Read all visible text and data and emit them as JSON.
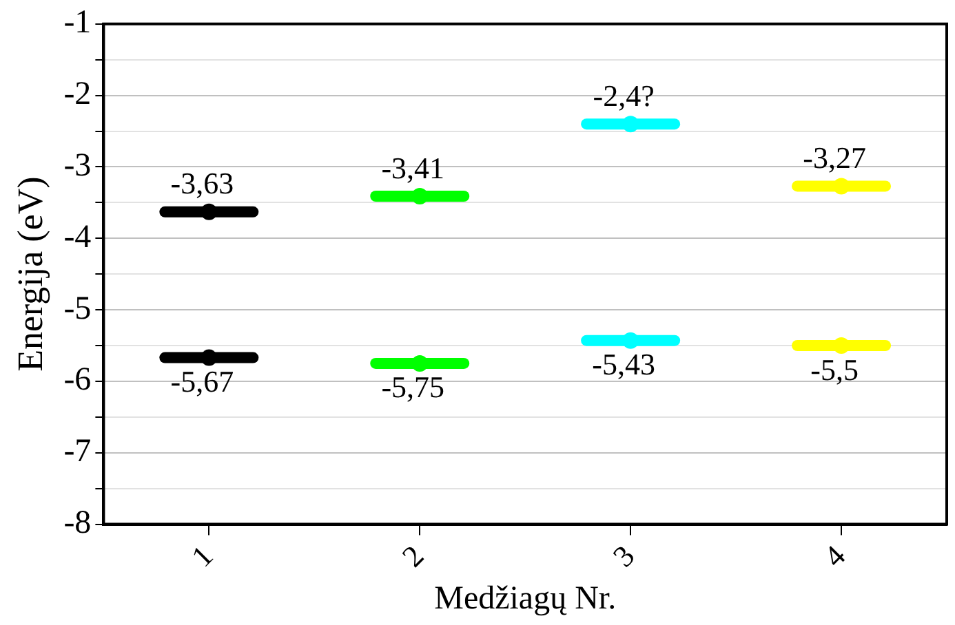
{
  "chart_data": {
    "type": "scatter",
    "xlabel": "Medžiagų Nr.",
    "ylabel": "Energija (eV)",
    "categories": [
      "1",
      "2",
      "3",
      "4"
    ],
    "series": [
      {
        "values": [
          -3.63,
          -3.41,
          -2.4,
          -3.27
        ],
        "colors": [
          "#000000",
          "#00ff00",
          "#00ffff",
          "#ffff00"
        ],
        "value_labels": [
          "-3,63",
          "-3,41",
          "-2,4?",
          "-3,27"
        ]
      },
      {
        "values": [
          -5.67,
          -5.75,
          -5.43,
          -5.5
        ],
        "colors": [
          "#000000",
          "#00ff00",
          "#00ffff",
          "#ffff00"
        ],
        "value_labels": [
          "-5,67",
          "-5,75",
          "-5,43",
          "-5,5"
        ]
      }
    ],
    "ylim": [
      -8,
      -1
    ],
    "yticks": [
      -8,
      {
        "value": -7.5,
        "label": null
      },
      -7,
      {
        "value": -6.5,
        "label": null
      },
      -6,
      {
        "value": -5.5,
        "label": null
      },
      -5,
      {
        "value": -4.5,
        "label": null
      },
      -4,
      {
        "value": -3.5,
        "label": null
      },
      -3,
      {
        "value": -2.5,
        "label": null
      },
      -2,
      {
        "value": -1.5,
        "label": null
      },
      -1
    ],
    "grid": "y",
    "legend": false
  }
}
